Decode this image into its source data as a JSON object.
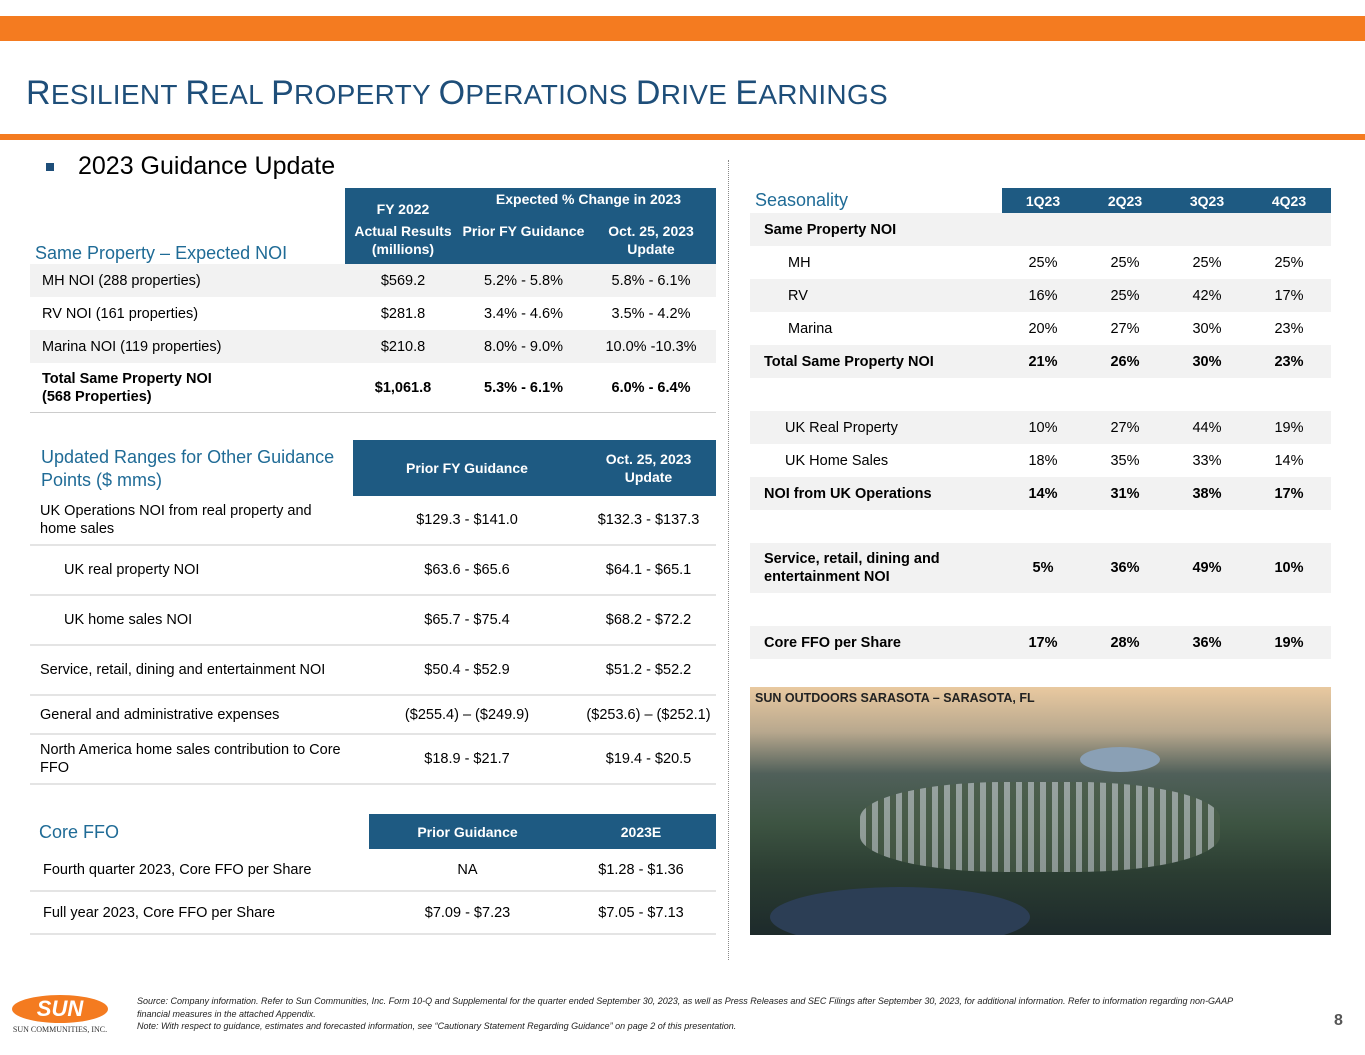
{
  "title": {
    "R": "R",
    "a": "ESILIENT ",
    "R2": "R",
    "b": "EAL ",
    "P": "P",
    "c": "ROPERTY ",
    "O": "O",
    "d": "PERATIONS ",
    "D": "D",
    "e": "RIVE ",
    "E": "E",
    "f": "ARNINGS"
  },
  "bullet": "2023 Guidance Update",
  "same_property": {
    "label": "Same Property – Expected NOI",
    "h_fy": "FY 2022",
    "h_exp": "Expected % Change in 2023",
    "h1": "Actual Results (millions)",
    "h2": "Prior FY Guidance",
    "h3": "Oct. 25, 2023 Update",
    "rows": [
      {
        "name": "MH NOI (288 properties)",
        "v1": "$569.2",
        "v2": "5.2% - 5.8%",
        "v3": "5.8% - 6.1%"
      },
      {
        "name": "RV NOI (161 properties)",
        "v1": "$281.8",
        "v2": "3.4% - 4.6%",
        "v3": "3.5% - 4.2%"
      },
      {
        "name": "Marina NOI (119 properties)",
        "v1": "$210.8",
        "v2": "8.0% - 9.0%",
        "v3": "10.0% -10.3%"
      },
      {
        "name": "Total Same Property NOI",
        "name2": "(568 Properties)",
        "v1": "$1,061.8",
        "v2": "5.3% - 6.1%",
        "v3": "6.0% - 6.4%"
      }
    ]
  },
  "other": {
    "label": "Updated Ranges for Other Guidance Points ($ mms)",
    "h1": "Prior FY Guidance",
    "h2": "Oct. 25, 2023 Update",
    "rows": [
      {
        "name": "UK Operations NOI from real property and home sales",
        "v1": "$129.3 - $141.0",
        "v2": "$132.3 - $137.3"
      },
      {
        "name": "UK real property NOI",
        "v1": "$63.6 - $65.6",
        "v2": "$64.1 - $65.1"
      },
      {
        "name": "UK home sales NOI",
        "v1": "$65.7 - $75.4",
        "v2": "$68.2 - $72.2"
      },
      {
        "name": "Service, retail, dining and entertainment NOI",
        "v1": "$50.4 - $52.9",
        "v2": "$51.2 - $52.2"
      },
      {
        "name": "General and administrative expenses",
        "v1": "($255.4) – ($249.9)",
        "v2": "($253.6) – ($252.1)"
      },
      {
        "name": "North America home sales contribution to Core FFO",
        "v1": "$18.9 - $21.7",
        "v2": "$19.4 - $20.5"
      }
    ]
  },
  "core": {
    "label": "Core FFO",
    "h1": "Prior Guidance",
    "h2": "2023E",
    "rows": [
      {
        "name": "Fourth quarter 2023, Core FFO per Share",
        "v1": "NA",
        "v2": "$1.28 - $1.36"
      },
      {
        "name": "Full year 2023, Core FFO per Share",
        "v1": "$7.09 - $7.23",
        "v2": "$7.05 - $7.13"
      }
    ]
  },
  "seasonality": {
    "label": "Seasonality",
    "cols": [
      "1Q23",
      "2Q23",
      "3Q23",
      "4Q23"
    ],
    "rows": [
      {
        "name": "Same Property NOI",
        "v": [
          "",
          "",
          "",
          ""
        ]
      },
      {
        "name": "MH",
        "v": [
          "25%",
          "25%",
          "25%",
          "25%"
        ]
      },
      {
        "name": "RV",
        "v": [
          "16%",
          "25%",
          "42%",
          "17%"
        ]
      },
      {
        "name": "Marina",
        "v": [
          "20%",
          "27%",
          "30%",
          "23%"
        ]
      },
      {
        "name": "Total Same Property NOI",
        "v": [
          "21%",
          "26%",
          "30%",
          "23%"
        ]
      },
      {
        "name": "",
        "v": [
          "",
          "",
          "",
          ""
        ]
      },
      {
        "name": "UK Real Property",
        "v": [
          "10%",
          "27%",
          "44%",
          "19%"
        ]
      },
      {
        "name": "UK Home Sales",
        "v": [
          "18%",
          "35%",
          "33%",
          "14%"
        ]
      },
      {
        "name": "NOI from UK Operations",
        "v": [
          "14%",
          "31%",
          "38%",
          "17%"
        ]
      },
      {
        "name": "",
        "v": [
          "",
          "",
          "",
          ""
        ]
      },
      {
        "name": "Service, retail, dining and entertainment NOI",
        "v": [
          "5%",
          "36%",
          "49%",
          "10%"
        ]
      },
      {
        "name": "",
        "v": [
          "",
          "",
          "",
          ""
        ]
      },
      {
        "name": "Core FFO per Share",
        "v": [
          "17%",
          "28%",
          "36%",
          "19%"
        ]
      }
    ]
  },
  "photo_caption": "SUN OUTDOORS SARASOTA – SARASOTA, FL",
  "footer": {
    "source": "Source: Company information. Refer to Sun Communities, Inc. Form 10-Q and Supplemental for the quarter ended September 30, 2023, as well as Press Releases and SEC Filings after September 30, 2023, for additional information. Refer to information regarding non-GAAP financial measures in the attached Appendix.",
    "note": "Note:  With respect to guidance, estimates and forecasted information, see “Cautionary Statement Regarding Guidance” on page 2 of this presentation.",
    "logo": "SUN",
    "company": "SUN COMMUNITIES, INC.",
    "page": "8"
  }
}
